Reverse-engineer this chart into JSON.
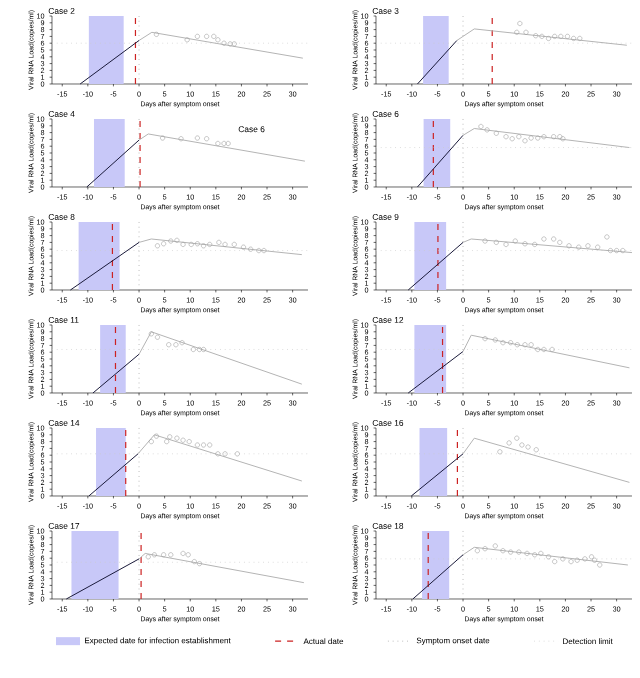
{
  "chart_data": [
    {
      "type": "line",
      "title": "Case 2",
      "xlabel": "Days after symptom onset",
      "ylabel": "Viral RNA Load(copies/ml)",
      "xlim": [
        -17,
        33
      ],
      "xticks": [
        -15,
        -10,
        -5,
        0,
        5,
        10,
        15,
        20,
        25,
        30
      ],
      "ylim": [
        0,
        10
      ],
      "yticks": [
        0,
        1,
        2,
        3,
        4,
        5,
        6,
        7,
        8,
        9,
        10
      ],
      "grid": false,
      "series": [
        {
          "color": "#1a1a3a",
          "x": [
            -11.5,
            0
          ],
          "values": [
            0,
            6.4
          ]
        },
        {
          "color": "#b4b4b4",
          "x": [
            0,
            2.5,
            32
          ],
          "values": [
            6.4,
            7.6,
            3.8
          ]
        },
        {
          "type": "scatter",
          "marker": "circle",
          "color": "#a0a0a0",
          "x": [
            3.4,
            9.4,
            11.4,
            13.2,
            14.6,
            15.4,
            16.6,
            17.8,
            18.6
          ],
          "values": [
            7.3,
            6.5,
            7.0,
            7.0,
            7.0,
            6.5,
            6.0,
            5.9,
            5.9
          ]
        }
      ],
      "bands": [
        {
          "axis": "x",
          "from": -9.8,
          "to": -3,
          "color": "#c8c8f8"
        }
      ],
      "ref_lines": [
        {
          "axis": "x",
          "value": -0.7,
          "color": "#cc2222",
          "line_style": "dashed"
        },
        {
          "axis": "x",
          "value": 0,
          "color": "#999999",
          "line_style": "dotted"
        },
        {
          "axis": "y",
          "value": 6,
          "color": "#cccccc",
          "line_style": "dotted"
        }
      ]
    },
    {
      "type": "line",
      "title": "Case 3",
      "xlabel": "Days after symptom onset",
      "ylabel": "Viral RNA Load(copies/ml)",
      "xlim": [
        -17,
        33
      ],
      "xticks": [
        -15,
        -10,
        -5,
        0,
        5,
        10,
        15,
        20,
        25,
        30
      ],
      "ylim": [
        0,
        10
      ],
      "yticks": [
        0,
        1,
        2,
        3,
        4,
        5,
        6,
        7,
        8,
        9,
        10
      ],
      "grid": false,
      "series": [
        {
          "color": "#1a1a3a",
          "x": [
            -8.9,
            -1.2
          ],
          "values": [
            0,
            6.4
          ]
        },
        {
          "color": "#b4b4b4",
          "x": [
            -1.2,
            2.2,
            32
          ],
          "values": [
            6.4,
            8.1,
            5.7
          ]
        },
        {
          "type": "scatter",
          "marker": "circle",
          "color": "#a0a0a0",
          "x": [
            11.1,
            10.5,
            12.3,
            14.2,
            15.4,
            16.7,
            17.9,
            19.1,
            20.4,
            21.6,
            22.8
          ],
          "values": [
            8.9,
            7.6,
            7.6,
            7.1,
            7.0,
            6.7,
            7.0,
            7.0,
            7.0,
            6.7,
            6.7
          ]
        }
      ],
      "bands": [
        {
          "axis": "x",
          "from": -7.8,
          "to": -2.8,
          "color": "#c8c8f8"
        }
      ],
      "ref_lines": [
        {
          "axis": "x",
          "value": 5.7,
          "color": "#cc2222",
          "line_style": "dashed"
        },
        {
          "axis": "x",
          "value": 0,
          "color": "#999999",
          "line_style": "dotted"
        },
        {
          "axis": "y",
          "value": 6,
          "color": "#cccccc",
          "line_style": "dotted"
        }
      ]
    },
    {
      "type": "line",
      "title": "Case 4",
      "xlabel": "Days after symptom onset",
      "ylabel": "Viral RNA Load(copies/ml)",
      "xlim": [
        -17,
        33
      ],
      "xticks": [
        -15,
        -10,
        -5,
        0,
        5,
        10,
        15,
        20,
        25,
        30
      ],
      "ylim": [
        0,
        10
      ],
      "yticks": [
        0,
        1,
        2,
        3,
        4,
        5,
        6,
        7,
        8,
        9,
        10
      ],
      "grid": false,
      "annotations": [
        "Case 6"
      ],
      "series": [
        {
          "color": "#1a1a3a",
          "x": [
            -10.2,
            0
          ],
          "values": [
            0,
            6.9
          ]
        },
        {
          "color": "#b4b4b4",
          "x": [
            0,
            1.8,
            32.4
          ],
          "values": [
            6.9,
            7.8,
            3.8
          ]
        },
        {
          "type": "scatter",
          "marker": "circle",
          "color": "#a0a0a0",
          "x": [
            4.6,
            8.2,
            11.4,
            13.2,
            15.4,
            16.6,
            17.4
          ],
          "values": [
            7.2,
            7.1,
            7.2,
            7.1,
            6.4,
            6.4,
            6.4
          ]
        }
      ],
      "bands": [
        {
          "axis": "x",
          "from": -8.8,
          "to": -2.8,
          "color": "#c8c8f8"
        }
      ],
      "ref_lines": [
        {
          "axis": "x",
          "value": 0.2,
          "color": "#cc2222",
          "line_style": "dashed"
        },
        {
          "axis": "x",
          "value": 0,
          "color": "#999999",
          "line_style": "dotted"
        }
      ]
    },
    {
      "type": "line",
      "title": "Case 6",
      "xlabel": "Days after symptom onset",
      "ylabel": "Viral RNA Load(copies/ml)",
      "xlim": [
        -17,
        33
      ],
      "xticks": [
        -15,
        -10,
        -5,
        0,
        5,
        10,
        15,
        20,
        25,
        30
      ],
      "ylim": [
        0,
        10
      ],
      "yticks": [
        0,
        1,
        2,
        3,
        4,
        5,
        6,
        7,
        8,
        9,
        10
      ],
      "grid": false,
      "series": [
        {
          "color": "#1a1a3a",
          "x": [
            -8.9,
            0
          ],
          "values": [
            0,
            7.6
          ]
        },
        {
          "color": "#b4b4b4",
          "x": [
            0,
            2.2,
            32.5
          ],
          "values": [
            7.6,
            8.6,
            5.8
          ]
        },
        {
          "type": "scatter",
          "marker": "circle",
          "color": "#a0a0a0",
          "x": [
            3.5,
            4.7,
            6.5,
            8.4,
            9.6,
            10.9,
            12.1,
            13.3,
            14.6,
            15.8,
            17.7,
            18.9,
            19.5
          ],
          "values": [
            8.9,
            8.4,
            7.9,
            7.4,
            7.1,
            7.4,
            6.8,
            7.2,
            7.2,
            7.4,
            7.4,
            7.4,
            7.1
          ]
        }
      ],
      "bands": [
        {
          "axis": "x",
          "from": -7.7,
          "to": -2.5,
          "color": "#c8c8f8"
        }
      ],
      "ref_lines": [
        {
          "axis": "x",
          "value": -5.8,
          "color": "#cc2222",
          "line_style": "dashed"
        },
        {
          "axis": "x",
          "value": 0,
          "color": "#999999",
          "line_style": "dotted"
        },
        {
          "axis": "y",
          "value": 5.8,
          "color": "#cccccc",
          "line_style": "dotted"
        }
      ]
    },
    {
      "type": "line",
      "title": "Case 8",
      "xlabel": "Days after symptom onset",
      "ylabel": "Viral RNA Load(copies/ml)",
      "xlim": [
        -17,
        33
      ],
      "xticks": [
        -15,
        -10,
        -5,
        0,
        5,
        10,
        15,
        20,
        25,
        30
      ],
      "ylim": [
        0,
        10
      ],
      "yticks": [
        0,
        1,
        2,
        3,
        4,
        5,
        6,
        7,
        8,
        9,
        10
      ],
      "grid": false,
      "series": [
        {
          "color": "#1a1a3a",
          "x": [
            -13.4,
            0
          ],
          "values": [
            0,
            7.0
          ]
        },
        {
          "color": "#b4b4b4",
          "x": [
            0,
            2.4,
            31.8
          ],
          "values": [
            7.0,
            7.5,
            5.2
          ]
        },
        {
          "type": "scatter",
          "marker": "circle",
          "color": "#a0a0a0",
          "x": [
            3.6,
            4.8,
            6.2,
            7.4,
            8.6,
            10.2,
            11.4,
            12.6,
            13.8,
            15.6,
            16.8,
            18.6,
            20.4,
            21.8,
            23.4,
            24.4
          ],
          "values": [
            6.5,
            6.8,
            7.2,
            7.3,
            6.7,
            6.7,
            6.8,
            6.5,
            6.7,
            7.0,
            6.7,
            6.7,
            6.3,
            6.0,
            5.8,
            5.8
          ]
        }
      ],
      "bands": [
        {
          "axis": "x",
          "from": -11.8,
          "to": -3.8,
          "color": "#c8c8f8"
        }
      ],
      "ref_lines": [
        {
          "axis": "x",
          "value": -5.2,
          "color": "#cc2222",
          "line_style": "dashed"
        },
        {
          "axis": "x",
          "value": 0,
          "color": "#999999",
          "line_style": "dotted"
        },
        {
          "axis": "y",
          "value": 5.8,
          "color": "#cccccc",
          "line_style": "dotted"
        }
      ]
    },
    {
      "type": "line",
      "title": "Case 9",
      "xlabel": "Days after symptom onset",
      "ylabel": "Viral RNA Load(copies/ml)",
      "xlim": [
        -17,
        33
      ],
      "xticks": [
        -15,
        -10,
        -5,
        0,
        5,
        10,
        15,
        20,
        25,
        30
      ],
      "ylim": [
        0,
        10
      ],
      "yticks": [
        0,
        1,
        2,
        3,
        4,
        5,
        6,
        7,
        8,
        9,
        10
      ],
      "grid": false,
      "series": [
        {
          "color": "#1a1a3a",
          "x": [
            -10.7,
            0
          ],
          "values": [
            0,
            7.0
          ]
        },
        {
          "color": "#b4b4b4",
          "x": [
            0,
            1.6,
            33
          ],
          "values": [
            7.0,
            7.5,
            5.5
          ]
        },
        {
          "type": "scatter",
          "marker": "circle",
          "color": "#a0a0a0",
          "x": [
            4.3,
            6.5,
            8.4,
            10.2,
            12.1,
            14,
            15.8,
            17.7,
            18.9,
            20.7,
            22.6,
            24.4,
            26.3,
            28.1,
            28.8,
            30,
            31.2
          ],
          "values": [
            7.2,
            7.0,
            6.7,
            7.2,
            6.8,
            6.7,
            7.5,
            7.5,
            7.0,
            6.5,
            6.3,
            6.5,
            6.3,
            7.8,
            5.8,
            5.8,
            5.8
          ]
        }
      ],
      "bands": [
        {
          "axis": "x",
          "from": -9.5,
          "to": -3.3,
          "color": "#c8c8f8"
        }
      ],
      "ref_lines": [
        {
          "axis": "x",
          "value": -4.9,
          "color": "#cc2222",
          "line_style": "dashed"
        },
        {
          "axis": "x",
          "value": 0,
          "color": "#999999",
          "line_style": "dotted"
        },
        {
          "axis": "y",
          "value": 5.8,
          "color": "#cccccc",
          "line_style": "dotted"
        }
      ]
    },
    {
      "type": "line",
      "title": "Case 11",
      "xlabel": "Days after symptom onset",
      "ylabel": "Viral RNA Load(copies/ml)",
      "xlim": [
        -17,
        33
      ],
      "xticks": [
        -15,
        -10,
        -5,
        0,
        5,
        10,
        15,
        20,
        25,
        30
      ],
      "ylim": [
        0,
        10
      ],
      "yticks": [
        0,
        1,
        2,
        3,
        4,
        5,
        6,
        7,
        8,
        9,
        10
      ],
      "grid": false,
      "series": [
        {
          "color": "#1a1a3a",
          "x": [
            -9.0,
            0
          ],
          "values": [
            0,
            5.7
          ]
        },
        {
          "color": "#b4b4b4",
          "x": [
            0,
            2.4,
            31.8
          ],
          "values": [
            5.7,
            9.0,
            1.3
          ]
        },
        {
          "type": "scatter",
          "marker": "circle",
          "color": "#a0a0a0",
          "x": [
            2.4,
            3.6,
            5.8,
            7.2,
            8.4,
            10.6,
            11.8,
            12.6
          ],
          "values": [
            8.7,
            8.2,
            7.1,
            7.1,
            7.4,
            6.4,
            6.4,
            6.4
          ]
        }
      ],
      "bands": [
        {
          "axis": "x",
          "from": -7.6,
          "to": -2.6,
          "color": "#c8c8f8"
        }
      ],
      "ref_lines": [
        {
          "axis": "x",
          "value": -4.6,
          "color": "#cc2222",
          "line_style": "dashed"
        },
        {
          "axis": "x",
          "value": 0,
          "color": "#999999",
          "line_style": "dotted"
        },
        {
          "axis": "y",
          "value": 6.4,
          "color": "#cccccc",
          "line_style": "dotted"
        }
      ]
    },
    {
      "type": "line",
      "title": "Case 12",
      "xlabel": "Days after symptom onset",
      "ylabel": "Viral RNA Load(copies/ml)",
      "xlim": [
        -17,
        33
      ],
      "xticks": [
        -15,
        -10,
        -5,
        0,
        5,
        10,
        15,
        20,
        25,
        30
      ],
      "ylim": [
        0,
        10
      ],
      "yticks": [
        0,
        1,
        2,
        3,
        4,
        5,
        6,
        7,
        8,
        9,
        10
      ],
      "grid": false,
      "series": [
        {
          "color": "#1a1a3a",
          "x": [
            -10.7,
            0
          ],
          "values": [
            0,
            6.1
          ]
        },
        {
          "color": "#b4b4b4",
          "x": [
            0,
            1.6,
            32.5
          ],
          "values": [
            6.1,
            8.5,
            3.7
          ]
        },
        {
          "type": "scatter",
          "marker": "circle",
          "color": "#a0a0a0",
          "x": [
            4.3,
            6.3,
            7.8,
            9.3,
            10.6,
            12.1,
            13.3,
            14.6,
            15.8,
            17.4
          ],
          "values": [
            8.0,
            7.8,
            7.4,
            7.4,
            7.1,
            7.1,
            7.1,
            6.4,
            6.4,
            6.4
          ]
        }
      ],
      "bands": [
        {
          "axis": "x",
          "from": -9.5,
          "to": -3.3,
          "color": "#c8c8f8"
        }
      ],
      "ref_lines": [
        {
          "axis": "x",
          "value": -4.0,
          "color": "#cc2222",
          "line_style": "dashed"
        },
        {
          "axis": "x",
          "value": 0,
          "color": "#999999",
          "line_style": "dotted"
        },
        {
          "axis": "y",
          "value": 6.4,
          "color": "#cccccc",
          "line_style": "dotted"
        }
      ]
    },
    {
      "type": "line",
      "title": "Case 14",
      "xlabel": "Days after symptom onset",
      "ylabel": "Viral RNA Load(copies/ml)",
      "xlim": [
        -17,
        33
      ],
      "xticks": [
        -15,
        -10,
        -5,
        0,
        5,
        10,
        15,
        20,
        25,
        30
      ],
      "ylim": [
        0,
        10
      ],
      "yticks": [
        0,
        1,
        2,
        3,
        4,
        5,
        6,
        7,
        8,
        9,
        10
      ],
      "grid": false,
      "series": [
        {
          "color": "#1a1a3a",
          "x": [
            -9.8,
            -0.2
          ],
          "values": [
            0,
            6.2
          ]
        },
        {
          "color": "#b4b4b4",
          "x": [
            -0.2,
            3,
            31.8
          ],
          "values": [
            6.2,
            9.0,
            2.2
          ]
        },
        {
          "type": "scatter",
          "marker": "circle",
          "color": "#a0a0a0",
          "x": [
            2.4,
            3.4,
            5.4,
            6,
            7.4,
            8.6,
            9.8,
            11.4,
            12.6,
            13.8,
            15.4,
            16.8,
            19.2
          ],
          "values": [
            8.0,
            8.8,
            8.0,
            8.7,
            8.5,
            8.2,
            8.0,
            7.5,
            7.5,
            7.5,
            6.2,
            6.2,
            6.2
          ]
        }
      ],
      "bands": [
        {
          "axis": "x",
          "from": -8.4,
          "to": -2.6,
          "color": "#c8c8f8"
        }
      ],
      "ref_lines": [
        {
          "axis": "x",
          "value": -2.6,
          "color": "#cc2222",
          "line_style": "dashed"
        },
        {
          "axis": "x",
          "value": 0,
          "color": "#999999",
          "line_style": "dotted"
        },
        {
          "axis": "y",
          "value": 6.2,
          "color": "#cccccc",
          "line_style": "dotted"
        }
      ]
    },
    {
      "type": "line",
      "title": "Case 16",
      "xlabel": "Days after symptom onset",
      "ylabel": "Viral RNA Load(copies/ml)",
      "xlim": [
        -17,
        33
      ],
      "xticks": [
        -15,
        -10,
        -5,
        0,
        5,
        10,
        15,
        20,
        25,
        30
      ],
      "ylim": [
        0,
        10
      ],
      "yticks": [
        0,
        1,
        2,
        3,
        4,
        5,
        6,
        7,
        8,
        9,
        10
      ],
      "grid": false,
      "series": [
        {
          "color": "#1a1a3a",
          "x": [
            -10.1,
            0
          ],
          "values": [
            0,
            6.2
          ]
        },
        {
          "color": "#b4b4b4",
          "x": [
            0,
            2.2,
            32.5
          ],
          "values": [
            6.2,
            8.5,
            2.0
          ]
        },
        {
          "type": "scatter",
          "marker": "circle",
          "color": "#a0a0a0",
          "x": [
            7.2,
            9,
            10.5,
            11.5,
            12.7,
            14.3
          ],
          "values": [
            6.5,
            7.8,
            8.5,
            7.5,
            7.2,
            6.8
          ]
        }
      ],
      "bands": [
        {
          "axis": "x",
          "from": -8.5,
          "to": -3.1,
          "color": "#c8c8f8"
        }
      ],
      "ref_lines": [
        {
          "axis": "x",
          "value": -1.1,
          "color": "#cc2222",
          "line_style": "dashed"
        },
        {
          "axis": "x",
          "value": 0,
          "color": "#999999",
          "line_style": "dotted"
        },
        {
          "axis": "y",
          "value": 6.2,
          "color": "#cccccc",
          "line_style": "dotted"
        }
      ]
    },
    {
      "type": "line",
      "title": "Case 17",
      "xlabel": "Days after symptom onset",
      "ylabel": "Viral RNA Load(copies/ml)",
      "xlim": [
        -17,
        33
      ],
      "xticks": [
        -15,
        -10,
        -5,
        0,
        5,
        10,
        15,
        20,
        25,
        30
      ],
      "ylim": [
        0,
        10
      ],
      "yticks": [
        0,
        1,
        2,
        3,
        4,
        5,
        6,
        7,
        8,
        9,
        10
      ],
      "grid": false,
      "series": [
        {
          "color": "#1a1a3a",
          "x": [
            -14.2,
            0
          ],
          "values": [
            0,
            5.9
          ]
        },
        {
          "color": "#b4b4b4",
          "x": [
            0,
            1.2,
            32.2
          ],
          "values": [
            5.9,
            6.7,
            2.4
          ]
        },
        {
          "type": "scatter",
          "marker": "circle",
          "color": "#a0a0a0",
          "x": [
            1.8,
            3,
            4.8,
            6.2,
            8.6,
            9.6,
            10.8,
            11.8
          ],
          "values": [
            6.2,
            6.5,
            6.5,
            6.5,
            6.7,
            6.5,
            5.5,
            5.2
          ]
        }
      ],
      "bands": [
        {
          "axis": "x",
          "from": -13.2,
          "to": -4.0,
          "color": "#c8c8f8"
        }
      ],
      "ref_lines": [
        {
          "axis": "x",
          "value": 0.4,
          "color": "#cc2222",
          "line_style": "dashed"
        },
        {
          "axis": "x",
          "value": 0,
          "color": "#999999",
          "line_style": "dotted"
        },
        {
          "axis": "y",
          "value": 5.4,
          "color": "#cccccc",
          "line_style": "dotted"
        }
      ]
    },
    {
      "type": "line",
      "title": "Case 18",
      "xlabel": "Days after symptom onset",
      "ylabel": "Viral RNA Load(copies/ml)",
      "xlim": [
        -17,
        33
      ],
      "xticks": [
        -15,
        -10,
        -5,
        0,
        5,
        10,
        15,
        20,
        25,
        30
      ],
      "ylim": [
        0,
        10
      ],
      "yticks": [
        0,
        1,
        2,
        3,
        4,
        5,
        6,
        7,
        8,
        9,
        10
      ],
      "grid": false,
      "legend": "bottom",
      "series": [
        {
          "color": "#1a1a3a",
          "x": [
            -9.8,
            0
          ],
          "values": [
            0,
            6.5
          ]
        },
        {
          "color": "#b4b4b4",
          "x": [
            0,
            2.2,
            32.2
          ],
          "values": [
            6.5,
            7.6,
            5.0
          ]
        },
        {
          "type": "scatter",
          "marker": "circle",
          "color": "#a0a0a0",
          "x": [
            2.8,
            4.3,
            6.3,
            7.8,
            9.3,
            10.9,
            12.5,
            14,
            15.2,
            16.7,
            17.9,
            19.5,
            21.1,
            22.3,
            23.8,
            25.1,
            25.7,
            26.7
          ],
          "values": [
            7.1,
            7.4,
            7.8,
            7.1,
            6.9,
            6.9,
            6.7,
            6.5,
            6.7,
            6.2,
            5.5,
            5.9,
            5.5,
            5.7,
            5.9,
            6.2,
            5.7,
            5.0
          ]
        }
      ],
      "bands": [
        {
          "axis": "x",
          "from": -8.0,
          "to": -2.7,
          "color": "#c8c8f8",
          "label": "Expected date for infection establishment"
        }
      ],
      "ref_lines": [
        {
          "axis": "x",
          "value": -6.8,
          "color": "#cc2222",
          "line_style": "dashed",
          "label": "Actual date"
        },
        {
          "axis": "x",
          "value": 0,
          "color": "#999999",
          "line_style": "dotted",
          "label": "Symptom onset date"
        },
        {
          "axis": "y",
          "value": 5.9,
          "color": "#cccccc",
          "line_style": "dotted",
          "label": "Detection limit"
        }
      ]
    }
  ]
}
